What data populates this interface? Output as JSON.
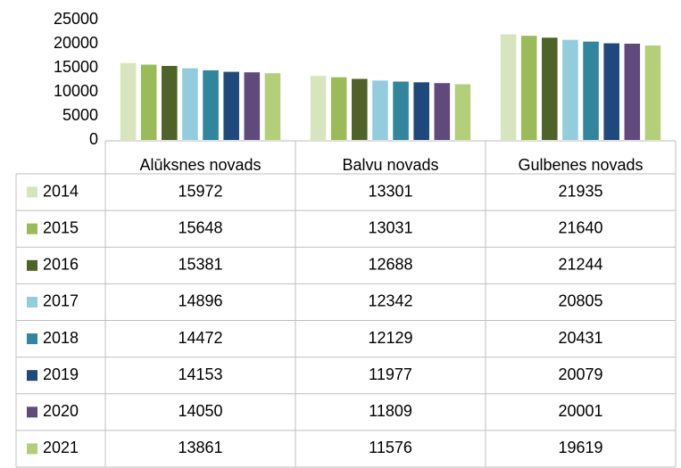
{
  "chart_data": {
    "type": "bar",
    "categories": [
      "Alūksnes novads",
      "Balvu novads",
      "Gulbenes novads"
    ],
    "series": [
      {
        "name": "2014",
        "color": "#d7e4bd",
        "values": [
          15972,
          13301,
          21935
        ]
      },
      {
        "name": "2015",
        "color": "#9bbb59",
        "values": [
          15648,
          13031,
          21640
        ]
      },
      {
        "name": "2016",
        "color": "#4f6228",
        "values": [
          15381,
          12688,
          21244
        ]
      },
      {
        "name": "2017",
        "color": "#93cddd",
        "values": [
          14896,
          12342,
          20805
        ]
      },
      {
        "name": "2018",
        "color": "#31859c",
        "values": [
          14472,
          12129,
          20431
        ]
      },
      {
        "name": "2019",
        "color": "#1f497d",
        "values": [
          14153,
          11977,
          20079
        ]
      },
      {
        "name": "2020",
        "color": "#604a7b",
        "values": [
          14050,
          11809,
          20001
        ]
      },
      {
        "name": "2021",
        "color": "#b3cf7a",
        "values": [
          13861,
          11576,
          19619
        ]
      }
    ],
    "ylim": [
      0,
      25000
    ],
    "yticks": [
      0,
      5000,
      10000,
      15000,
      20000,
      25000
    ],
    "data_table": true
  }
}
